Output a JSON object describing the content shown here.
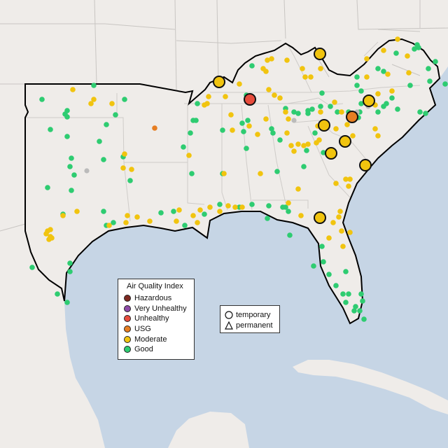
{
  "legend": {
    "aqi_title": "Air Quality Index",
    "aqi_categories": [
      {
        "label": "Hazardous",
        "color": "#7e2a21"
      },
      {
        "label": "Very Unhealthy",
        "color": "#8e4aa8"
      },
      {
        "label": "Unhealthy",
        "color": "#e74c3c"
      },
      {
        "label": "USG",
        "color": "#e67e22"
      },
      {
        "label": "Moderate",
        "color": "#f1c40f"
      },
      {
        "label": "Good",
        "color": "#2ecc71"
      }
    ],
    "monitor_types": [
      {
        "label": "temporary",
        "shape": "circle"
      },
      {
        "label": "permanent",
        "shape": "triangle"
      }
    ]
  },
  "map": {
    "land_color": "#efece9",
    "water_color": "#c6d5e5",
    "no_data_color": "#bbbbbb"
  }
}
